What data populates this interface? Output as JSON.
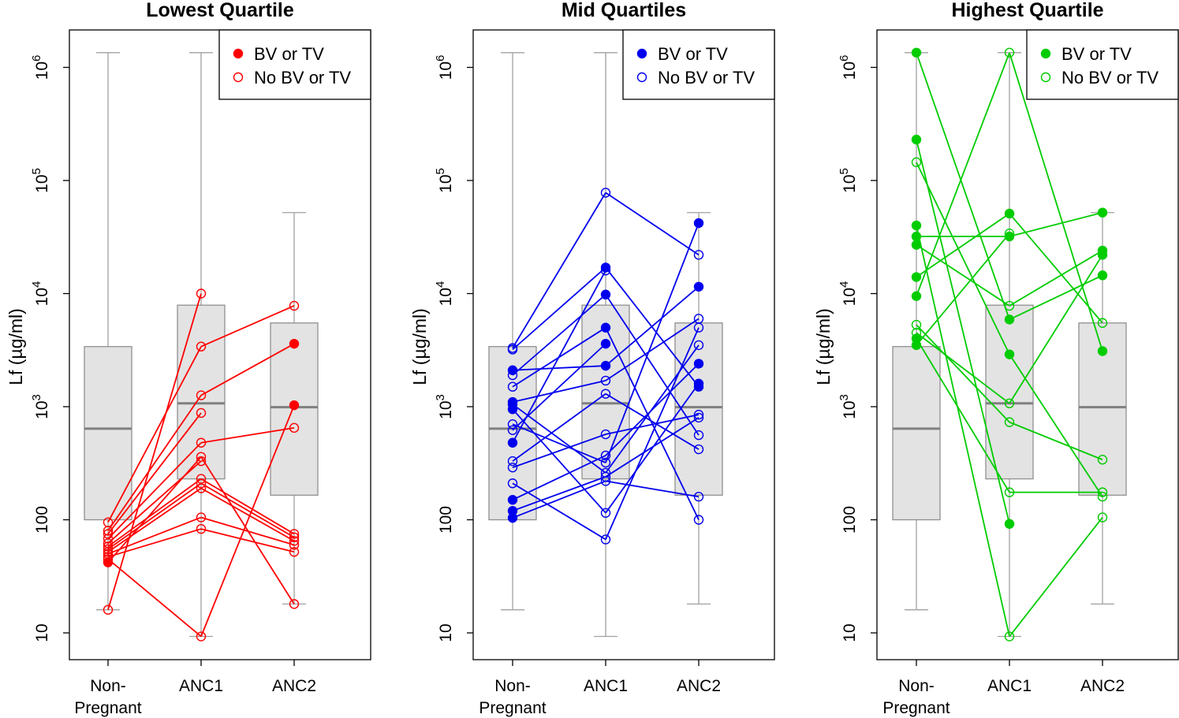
{
  "chart_data": [
    {
      "type": "boxplot-with-paired-lines",
      "title": "Lowest Quartile",
      "ylabel": "Lf (µg/ml)",
      "yscale": "log",
      "ylim": [
        7,
        2000000
      ],
      "yticks": [
        10,
        100,
        1000,
        10000,
        100000,
        1000000
      ],
      "ytick_labels": [
        "10",
        "100",
        "10^3",
        "10^4",
        "10^5",
        "10^6"
      ],
      "categories": [
        "Non-\nPregnant",
        "ANC1",
        "ANC2"
      ],
      "color": "#ff0000",
      "legend": {
        "position": "top-right",
        "entries": [
          "BV or TV",
          "No BV or TV"
        ]
      },
      "boxes": [
        {
          "whisker_low": 16,
          "q1": 100,
          "median": 640,
          "q3": 3400,
          "whisker_high": 1350000
        },
        {
          "whisker_low": 9.3,
          "q1": 230,
          "median": 1070,
          "q3": 7900,
          "whisker_high": 1350000
        },
        {
          "whisker_low": 18,
          "q1": 165,
          "median": 990,
          "q3": 5500,
          "whisker_high": 52000
        }
      ],
      "segments": [
        {
          "x1": 0,
          "y1": 42,
          "x2": 1,
          "y2": 360,
          "filled1": true,
          "filled2": false
        },
        {
          "x1": 0,
          "y1": 16,
          "x2": 1,
          "y2": 10000,
          "filled1": false,
          "filled2": false
        },
        {
          "x1": 0,
          "y1": 95,
          "x2": 1,
          "y2": 3400,
          "filled1": false,
          "filled2": false
        },
        {
          "x1": 0,
          "y1": 80,
          "x2": 1,
          "y2": 1260,
          "filled1": false,
          "filled2": false
        },
        {
          "x1": 0,
          "y1": 75,
          "x2": 1,
          "y2": 880,
          "filled1": false,
          "filled2": false
        },
        {
          "x1": 0,
          "y1": 68,
          "x2": 1,
          "y2": 480,
          "filled1": false,
          "filled2": false
        },
        {
          "x1": 0,
          "y1": 62,
          "x2": 1,
          "y2": 330,
          "filled1": false,
          "filled2": false
        },
        {
          "x1": 0,
          "y1": 58,
          "x2": 1,
          "y2": 230,
          "filled1": false,
          "filled2": false
        },
        {
          "x1": 0,
          "y1": 55,
          "x2": 1,
          "y2": 210,
          "filled1": false,
          "filled2": false
        },
        {
          "x1": 0,
          "y1": 52,
          "x2": 1,
          "y2": 190,
          "filled1": false,
          "filled2": false
        },
        {
          "x1": 0,
          "y1": 50,
          "x2": 1,
          "y2": 105,
          "filled1": false,
          "filled2": false
        },
        {
          "x1": 0,
          "y1": 47,
          "x2": 1,
          "y2": 83,
          "filled1": false,
          "filled2": false
        },
        {
          "x1": 0,
          "y1": 45,
          "x2": 1,
          "y2": 9.3,
          "filled1": false,
          "filled2": false
        },
        {
          "x1": 1,
          "y1": 9.3,
          "x2": 2,
          "y2": 1030,
          "filled1": false,
          "filled2": true
        },
        {
          "x1": 1,
          "y1": 3400,
          "x2": 2,
          "y2": 7800,
          "filled1": false,
          "filled2": false
        },
        {
          "x1": 1,
          "y1": 1260,
          "x2": 2,
          "y2": 3600,
          "filled1": false,
          "filled2": true
        },
        {
          "x1": 1,
          "y1": 480,
          "x2": 2,
          "y2": 650,
          "filled1": false,
          "filled2": false
        },
        {
          "x1": 1,
          "y1": 360,
          "x2": 2,
          "y2": 18,
          "filled1": false,
          "filled2": false
        },
        {
          "x1": 1,
          "y1": 230,
          "x2": 2,
          "y2": 75,
          "filled1": false,
          "filled2": false
        },
        {
          "x1": 1,
          "y1": 210,
          "x2": 2,
          "y2": 70,
          "filled1": false,
          "filled2": false
        },
        {
          "x1": 1,
          "y1": 190,
          "x2": 2,
          "y2": 65,
          "filled1": false,
          "filled2": false
        },
        {
          "x1": 1,
          "y1": 105,
          "x2": 2,
          "y2": 60,
          "filled1": false,
          "filled2": false
        },
        {
          "x1": 1,
          "y1": 83,
          "x2": 2,
          "y2": 52,
          "filled1": false,
          "filled2": false
        }
      ]
    },
    {
      "type": "boxplot-with-paired-lines",
      "title": "Mid Quartiles",
      "ylabel": "Lf (µg/ml)",
      "yscale": "log",
      "ylim": [
        7,
        2000000
      ],
      "yticks": [
        10,
        100,
        1000,
        10000,
        100000,
        1000000
      ],
      "ytick_labels": [
        "10",
        "100",
        "10^3",
        "10^4",
        "10^5",
        "10^6"
      ],
      "categories": [
        "Non-\nPregnant",
        "ANC1",
        "ANC2"
      ],
      "color": "#0000ee",
      "legend": {
        "position": "top-right",
        "entries": [
          "BV or TV",
          "No BV or TV"
        ]
      },
      "boxes": [
        {
          "whisker_low": 16,
          "q1": 100,
          "median": 640,
          "q3": 3400,
          "whisker_high": 1350000
        },
        {
          "whisker_low": 9.3,
          "q1": 230,
          "median": 1070,
          "q3": 7900,
          "whisker_high": 1350000
        },
        {
          "whisker_low": 18,
          "q1": 165,
          "median": 990,
          "q3": 5500,
          "whisker_high": 52000
        }
      ],
      "segments": [
        {
          "x1": 0,
          "y1": 3300,
          "x2": 1,
          "y2": 78000,
          "filled1": false,
          "filled2": false
        },
        {
          "x1": 0,
          "y1": 3200,
          "x2": 1,
          "y2": 17000,
          "filled1": false,
          "filled2": true
        },
        {
          "x1": 0,
          "y1": 2100,
          "x2": 1,
          "y2": 2300,
          "filled1": true,
          "filled2": true
        },
        {
          "x1": 0,
          "y1": 1900,
          "x2": 1,
          "y2": 9800,
          "filled1": false,
          "filled2": true
        },
        {
          "x1": 0,
          "y1": 1500,
          "x2": 1,
          "y2": 5000,
          "filled1": false,
          "filled2": true
        },
        {
          "x1": 0,
          "y1": 1100,
          "x2": 1,
          "y2": 1700,
          "filled1": true,
          "filled2": false
        },
        {
          "x1": 0,
          "y1": 1050,
          "x2": 1,
          "y2": 260,
          "filled1": true,
          "filled2": false
        },
        {
          "x1": 0,
          "y1": 950,
          "x2": 1,
          "y2": 115,
          "filled1": true,
          "filled2": false
        },
        {
          "x1": 0,
          "y1": 700,
          "x2": 1,
          "y2": 320,
          "filled1": false,
          "filled2": false
        },
        {
          "x1": 0,
          "y1": 620,
          "x2": 1,
          "y2": 3600,
          "filled1": false,
          "filled2": true
        },
        {
          "x1": 0,
          "y1": 480,
          "x2": 1,
          "y2": 16000,
          "filled1": true,
          "filled2": false
        },
        {
          "x1": 0,
          "y1": 330,
          "x2": 1,
          "y2": 1300,
          "filled1": false,
          "filled2": false
        },
        {
          "x1": 0,
          "y1": 290,
          "x2": 1,
          "y2": 570,
          "filled1": false,
          "filled2": false
        },
        {
          "x1": 0,
          "y1": 210,
          "x2": 1,
          "y2": 67,
          "filled1": false,
          "filled2": false
        },
        {
          "x1": 0,
          "y1": 150,
          "x2": 1,
          "y2": 370,
          "filled1": true,
          "filled2": false
        },
        {
          "x1": 0,
          "y1": 120,
          "x2": 1,
          "y2": 240,
          "filled1": true,
          "filled2": false
        },
        {
          "x1": 0,
          "y1": 104,
          "x2": 1,
          "y2": 220,
          "filled1": true,
          "filled2": false
        },
        {
          "x1": 1,
          "y1": 78000,
          "x2": 2,
          "y2": 22000,
          "filled1": false,
          "filled2": false
        },
        {
          "x1": 1,
          "y1": 17000,
          "x2": 2,
          "y2": 1500,
          "filled1": true,
          "filled2": true
        },
        {
          "x1": 1,
          "y1": 9800,
          "x2": 2,
          "y2": 560,
          "filled1": true,
          "filled2": false
        },
        {
          "x1": 1,
          "y1": 5000,
          "x2": 2,
          "y2": 100,
          "filled1": true,
          "filled2": false
        },
        {
          "x1": 1,
          "y1": 2300,
          "x2": 2,
          "y2": 11500,
          "filled1": true,
          "filled2": true
        },
        {
          "x1": 1,
          "y1": 1700,
          "x2": 2,
          "y2": 6000,
          "filled1": false,
          "filled2": false
        },
        {
          "x1": 1,
          "y1": 1300,
          "x2": 2,
          "y2": 420,
          "filled1": false,
          "filled2": false
        },
        {
          "x1": 1,
          "y1": 370,
          "x2": 2,
          "y2": 2400,
          "filled1": false,
          "filled2": true
        },
        {
          "x1": 1,
          "y1": 320,
          "x2": 2,
          "y2": 42000,
          "filled1": false,
          "filled2": true
        },
        {
          "x1": 1,
          "y1": 260,
          "x2": 2,
          "y2": 3500,
          "filled1": false,
          "filled2": false
        },
        {
          "x1": 1,
          "y1": 240,
          "x2": 2,
          "y2": 800,
          "filled1": false,
          "filled2": false
        },
        {
          "x1": 1,
          "y1": 220,
          "x2": 2,
          "y2": 160,
          "filled1": false,
          "filled2": false
        },
        {
          "x1": 1,
          "y1": 115,
          "x2": 2,
          "y2": 1600,
          "filled1": false,
          "filled2": true
        },
        {
          "x1": 1,
          "y1": 67,
          "x2": 2,
          "y2": 5000,
          "filled1": false,
          "filled2": false
        },
        {
          "x1": 1,
          "y1": 570,
          "x2": 2,
          "y2": 850,
          "filled1": false,
          "filled2": false
        }
      ]
    },
    {
      "type": "boxplot-with-paired-lines",
      "title": "Highest Quartile",
      "ylabel": "Lf (µg/ml)",
      "yscale": "log",
      "ylim": [
        7,
        2000000
      ],
      "yticks": [
        10,
        100,
        1000,
        10000,
        100000,
        1000000
      ],
      "ytick_labels": [
        "10",
        "100",
        "10^3",
        "10^4",
        "10^5",
        "10^6"
      ],
      "categories": [
        "Non-\nPregnant",
        "ANC1",
        "ANC2"
      ],
      "color": "#00cc00",
      "legend": {
        "position": "top-right",
        "entries": [
          "BV or TV",
          "No BV or TV"
        ]
      },
      "boxes": [
        {
          "whisker_low": 16,
          "q1": 100,
          "median": 640,
          "q3": 3400,
          "whisker_high": 1350000
        },
        {
          "whisker_low": 9.3,
          "q1": 230,
          "median": 1070,
          "q3": 7900,
          "whisker_high": 1350000
        },
        {
          "whisker_low": 18,
          "q1": 165,
          "median": 990,
          "q3": 5500,
          "whisker_high": 52000
        }
      ],
      "segments": [
        {
          "x1": 0,
          "y1": 1350000,
          "x2": 1,
          "y2": 5900,
          "filled1": true,
          "filled2": true
        },
        {
          "x1": 0,
          "y1": 230000,
          "x2": 1,
          "y2": 92,
          "filled1": true,
          "filled2": true
        },
        {
          "x1": 0,
          "y1": 145000,
          "x2": 1,
          "y2": 2900,
          "filled1": false,
          "filled2": true
        },
        {
          "x1": 0,
          "y1": 40000,
          "x2": 1,
          "y2": 9.3,
          "filled1": true,
          "filled2": false
        },
        {
          "x1": 0,
          "y1": 32000,
          "x2": 1,
          "y2": 32000,
          "filled1": true,
          "filled2": true
        },
        {
          "x1": 0,
          "y1": 27000,
          "x2": 1,
          "y2": 7800,
          "filled1": true,
          "filled2": false
        },
        {
          "x1": 0,
          "y1": 14000,
          "x2": 1,
          "y2": 51000,
          "filled1": true,
          "filled2": true
        },
        {
          "x1": 0,
          "y1": 9500,
          "x2": 1,
          "y2": 1350000,
          "filled1": true,
          "filled2": false
        },
        {
          "x1": 0,
          "y1": 5300,
          "x2": 1,
          "y2": 730,
          "filled1": false,
          "filled2": false
        },
        {
          "x1": 0,
          "y1": 4500,
          "x2": 1,
          "y2": 1070,
          "filled1": false,
          "filled2": false
        },
        {
          "x1": 0,
          "y1": 4000,
          "x2": 1,
          "y2": 175,
          "filled1": true,
          "filled2": false
        },
        {
          "x1": 0,
          "y1": 3500,
          "x2": 1,
          "y2": 34000,
          "filled1": true,
          "filled2": false
        },
        {
          "x1": 1,
          "y1": 1350000,
          "x2": 2,
          "y2": 3100,
          "filled1": false,
          "filled2": true
        },
        {
          "x1": 1,
          "y1": 51000,
          "x2": 2,
          "y2": 5500,
          "filled1": true,
          "filled2": false
        },
        {
          "x1": 1,
          "y1": 32000,
          "x2": 2,
          "y2": 52000,
          "filled1": true,
          "filled2": true
        },
        {
          "x1": 1,
          "y1": 7800,
          "x2": 2,
          "y2": 24000,
          "filled1": false,
          "filled2": true
        },
        {
          "x1": 1,
          "y1": 5900,
          "x2": 2,
          "y2": 14500,
          "filled1": true,
          "filled2": true
        },
        {
          "x1": 1,
          "y1": 2900,
          "x2": 2,
          "y2": 160,
          "filled1": true,
          "filled2": false
        },
        {
          "x1": 1,
          "y1": 1070,
          "x2": 2,
          "y2": 22000,
          "filled1": false,
          "filled2": true
        },
        {
          "x1": 1,
          "y1": 730,
          "x2": 2,
          "y2": 340,
          "filled1": false,
          "filled2": false
        },
        {
          "x1": 1,
          "y1": 175,
          "x2": 2,
          "y2": 175,
          "filled1": false,
          "filled2": false
        },
        {
          "x1": 1,
          "y1": 9.3,
          "x2": 2,
          "y2": 105,
          "filled1": false,
          "filled2": false
        }
      ]
    }
  ]
}
